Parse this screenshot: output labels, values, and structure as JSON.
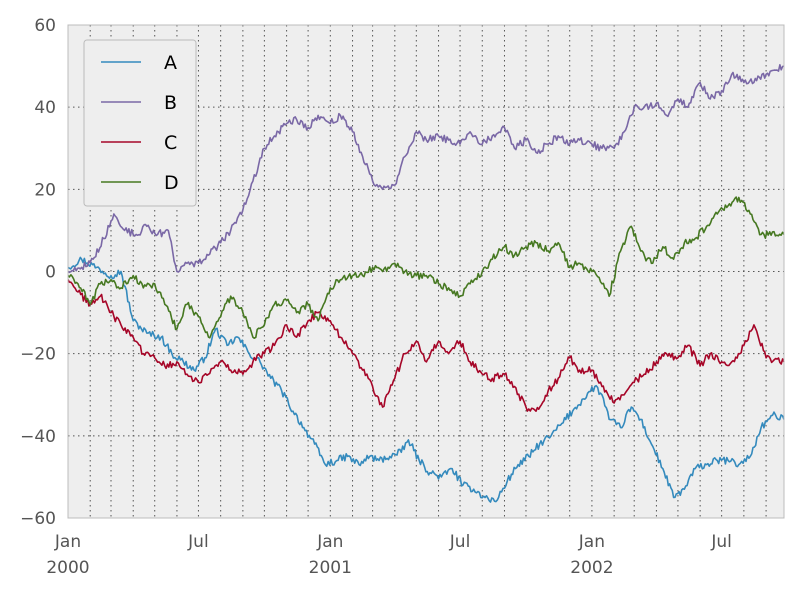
{
  "chart_data": {
    "type": "line",
    "title": "",
    "xlabel": "",
    "ylabel": "",
    "xlim": [
      "2000-01-01",
      "2002-09-26"
    ],
    "ylim": [
      -60,
      60
    ],
    "grid": true,
    "legend_position": "top-left",
    "y_ticks": [
      {
        "value": -60,
        "label": "−60"
      },
      {
        "value": -40,
        "label": "−40"
      },
      {
        "value": -20,
        "label": "−20"
      },
      {
        "value": 0,
        "label": "0"
      },
      {
        "value": 20,
        "label": "20"
      },
      {
        "value": 40,
        "label": "40"
      },
      {
        "value": 60,
        "label": "60"
      }
    ],
    "x_ticks": [
      {
        "date": "2000-01-01",
        "label": "Jan",
        "year": "2000"
      },
      {
        "date": "2000-07-01",
        "label": "Jul",
        "year": ""
      },
      {
        "date": "2001-01-01",
        "label": "Jan",
        "year": "2001"
      },
      {
        "date": "2001-07-01",
        "label": "Jul",
        "year": ""
      },
      {
        "date": "2002-01-01",
        "label": "Jan",
        "year": "2002"
      },
      {
        "date": "2002-07-01",
        "label": "Jul",
        "year": ""
      }
    ],
    "series": [
      {
        "name": "A",
        "color": "#348abd",
        "points": [
          [
            "2000-01-01",
            1
          ],
          [
            "2000-01-20",
            3
          ],
          [
            "2000-02-10",
            1
          ],
          [
            "2000-03-01",
            -1
          ],
          [
            "2000-03-15",
            0
          ],
          [
            "2000-04-01",
            -12
          ],
          [
            "2000-04-20",
            -15
          ],
          [
            "2000-05-10",
            -16
          ],
          [
            "2000-05-25",
            -20
          ],
          [
            "2000-06-10",
            -22
          ],
          [
            "2000-06-25",
            -24
          ],
          [
            "2000-07-10",
            -21
          ],
          [
            "2000-07-25",
            -14
          ],
          [
            "2000-08-10",
            -18
          ],
          [
            "2000-08-25",
            -16
          ],
          [
            "2000-09-10",
            -20
          ],
          [
            "2000-09-25",
            -22
          ],
          [
            "2000-10-10",
            -26
          ],
          [
            "2000-10-25",
            -29
          ],
          [
            "2000-11-10",
            -34
          ],
          [
            "2000-11-25",
            -38
          ],
          [
            "2000-12-10",
            -42
          ],
          [
            "2000-12-25",
            -47
          ],
          [
            "2001-01-10",
            -46
          ],
          [
            "2001-01-25",
            -45
          ],
          [
            "2001-02-10",
            -47
          ],
          [
            "2001-02-25",
            -45
          ],
          [
            "2001-03-10",
            -46
          ],
          [
            "2001-03-25",
            -45
          ],
          [
            "2001-04-10",
            -44
          ],
          [
            "2001-04-20",
            -41
          ],
          [
            "2001-05-05",
            -46
          ],
          [
            "2001-05-20",
            -49
          ],
          [
            "2001-06-05",
            -50
          ],
          [
            "2001-06-20",
            -48
          ],
          [
            "2001-07-05",
            -52
          ],
          [
            "2001-07-20",
            -53
          ],
          [
            "2001-08-05",
            -55
          ],
          [
            "2001-08-20",
            -56
          ],
          [
            "2001-09-05",
            -51
          ],
          [
            "2001-09-20",
            -47
          ],
          [
            "2001-10-05",
            -45
          ],
          [
            "2001-10-20",
            -42
          ],
          [
            "2001-11-05",
            -40
          ],
          [
            "2001-11-20",
            -37
          ],
          [
            "2001-12-05",
            -34
          ],
          [
            "2001-12-20",
            -31
          ],
          [
            "2002-01-05",
            -28
          ],
          [
            "2002-01-15",
            -30
          ],
          [
            "2002-01-25",
            -36
          ],
          [
            "2002-02-10",
            -38
          ],
          [
            "2002-02-25",
            -33
          ],
          [
            "2002-03-10",
            -36
          ],
          [
            "2002-03-25",
            -42
          ],
          [
            "2002-04-10",
            -48
          ],
          [
            "2002-04-25",
            -55
          ],
          [
            "2002-05-10",
            -53
          ],
          [
            "2002-05-25",
            -48
          ],
          [
            "2002-06-10",
            -47
          ],
          [
            "2002-06-25",
            -46
          ],
          [
            "2002-07-10",
            -46
          ],
          [
            "2002-07-25",
            -47
          ],
          [
            "2002-08-10",
            -45
          ],
          [
            "2002-08-25",
            -38
          ],
          [
            "2002-09-10",
            -35
          ],
          [
            "2002-09-26",
            -36
          ]
        ]
      },
      {
        "name": "B",
        "color": "#7a68a6",
        "points": [
          [
            "2000-01-01",
            0
          ],
          [
            "2000-01-20",
            1
          ],
          [
            "2000-02-05",
            3
          ],
          [
            "2000-02-20",
            8
          ],
          [
            "2000-03-05",
            14
          ],
          [
            "2000-03-20",
            10
          ],
          [
            "2000-04-05",
            9
          ],
          [
            "2000-04-20",
            11
          ],
          [
            "2000-05-05",
            9
          ],
          [
            "2000-05-20",
            10
          ],
          [
            "2000-06-01",
            0
          ],
          [
            "2000-06-15",
            2
          ],
          [
            "2000-07-01",
            2
          ],
          [
            "2000-07-15",
            4
          ],
          [
            "2000-08-01",
            7
          ],
          [
            "2000-08-15",
            10
          ],
          [
            "2000-09-01",
            15
          ],
          [
            "2000-09-15",
            22
          ],
          [
            "2000-10-01",
            30
          ],
          [
            "2000-10-15",
            33
          ],
          [
            "2000-11-01",
            36
          ],
          [
            "2000-11-15",
            37
          ],
          [
            "2000-12-01",
            35
          ],
          [
            "2000-12-15",
            38
          ],
          [
            "2001-01-01",
            36
          ],
          [
            "2001-01-15",
            38
          ],
          [
            "2001-02-01",
            34
          ],
          [
            "2001-02-15",
            28
          ],
          [
            "2001-03-01",
            22
          ],
          [
            "2001-03-15",
            20
          ],
          [
            "2001-04-01",
            21
          ],
          [
            "2001-04-15",
            28
          ],
          [
            "2001-05-01",
            34
          ],
          [
            "2001-05-15",
            32
          ],
          [
            "2001-06-01",
            33
          ],
          [
            "2001-06-15",
            32
          ],
          [
            "2001-07-01",
            31
          ],
          [
            "2001-07-15",
            34
          ],
          [
            "2001-08-01",
            31
          ],
          [
            "2001-08-15",
            33
          ],
          [
            "2001-09-01",
            35
          ],
          [
            "2001-09-15",
            30
          ],
          [
            "2001-10-01",
            32
          ],
          [
            "2001-10-15",
            29
          ],
          [
            "2001-11-01",
            31
          ],
          [
            "2001-11-15",
            33
          ],
          [
            "2001-12-01",
            31
          ],
          [
            "2001-12-15",
            32
          ],
          [
            "2002-01-01",
            31
          ],
          [
            "2002-01-15",
            30
          ],
          [
            "2002-02-01",
            30
          ],
          [
            "2002-02-15",
            34
          ],
          [
            "2002-03-01",
            40
          ],
          [
            "2002-03-15",
            40
          ],
          [
            "2002-04-01",
            41
          ],
          [
            "2002-04-15",
            38
          ],
          [
            "2002-05-01",
            42
          ],
          [
            "2002-05-15",
            40
          ],
          [
            "2002-06-01",
            46
          ],
          [
            "2002-06-15",
            42
          ],
          [
            "2002-07-01",
            44
          ],
          [
            "2002-07-15",
            48
          ],
          [
            "2002-08-01",
            46
          ],
          [
            "2002-08-15",
            46
          ],
          [
            "2002-09-01",
            48
          ],
          [
            "2002-09-26",
            50
          ]
        ]
      },
      {
        "name": "C",
        "color": "#a60628",
        "points": [
          [
            "2000-01-01",
            -2
          ],
          [
            "2000-01-15",
            -5
          ],
          [
            "2000-02-01",
            -8
          ],
          [
            "2000-02-15",
            -6
          ],
          [
            "2000-03-01",
            -10
          ],
          [
            "2000-03-15",
            -13
          ],
          [
            "2000-04-01",
            -16
          ],
          [
            "2000-04-15",
            -20
          ],
          [
            "2000-05-01",
            -21
          ],
          [
            "2000-05-15",
            -23
          ],
          [
            "2000-06-01",
            -22
          ],
          [
            "2000-06-15",
            -25
          ],
          [
            "2000-07-01",
            -27
          ],
          [
            "2000-07-15",
            -25
          ],
          [
            "2000-08-01",
            -22
          ],
          [
            "2000-08-15",
            -24
          ],
          [
            "2000-09-01",
            -25
          ],
          [
            "2000-09-15",
            -22
          ],
          [
            "2000-10-01",
            -20
          ],
          [
            "2000-10-15",
            -18
          ],
          [
            "2000-11-01",
            -13
          ],
          [
            "2000-11-15",
            -16
          ],
          [
            "2000-12-01",
            -12
          ],
          [
            "2000-12-15",
            -10
          ],
          [
            "2001-01-01",
            -12
          ],
          [
            "2001-01-15",
            -16
          ],
          [
            "2001-02-01",
            -20
          ],
          [
            "2001-02-15",
            -24
          ],
          [
            "2001-03-01",
            -28
          ],
          [
            "2001-03-15",
            -33
          ],
          [
            "2001-04-01",
            -26
          ],
          [
            "2001-04-15",
            -20
          ],
          [
            "2001-05-01",
            -17
          ],
          [
            "2001-05-15",
            -22
          ],
          [
            "2001-06-01",
            -17
          ],
          [
            "2001-06-15",
            -20
          ],
          [
            "2001-07-01",
            -17
          ],
          [
            "2001-07-15",
            -22
          ],
          [
            "2001-08-01",
            -25
          ],
          [
            "2001-08-15",
            -26
          ],
          [
            "2001-09-01",
            -25
          ],
          [
            "2001-09-15",
            -28
          ],
          [
            "2001-10-01",
            -33
          ],
          [
            "2001-10-15",
            -34
          ],
          [
            "2001-11-01",
            -29
          ],
          [
            "2001-11-15",
            -26
          ],
          [
            "2001-12-01",
            -21
          ],
          [
            "2001-12-15",
            -24
          ],
          [
            "2002-01-01",
            -24
          ],
          [
            "2002-01-15",
            -28
          ],
          [
            "2002-02-01",
            -32
          ],
          [
            "2002-02-15",
            -30
          ],
          [
            "2002-03-01",
            -27
          ],
          [
            "2002-03-15",
            -25
          ],
          [
            "2002-04-01",
            -22
          ],
          [
            "2002-04-15",
            -20
          ],
          [
            "2002-05-01",
            -21
          ],
          [
            "2002-05-15",
            -18
          ],
          [
            "2002-06-01",
            -23
          ],
          [
            "2002-06-15",
            -20
          ],
          [
            "2002-07-01",
            -22
          ],
          [
            "2002-07-15",
            -22
          ],
          [
            "2002-08-01",
            -18
          ],
          [
            "2002-08-15",
            -13
          ],
          [
            "2002-09-01",
            -21
          ],
          [
            "2002-09-26",
            -22
          ]
        ]
      },
      {
        "name": "D",
        "color": "#467821",
        "points": [
          [
            "2000-01-01",
            -1
          ],
          [
            "2000-01-15",
            -3
          ],
          [
            "2000-02-01",
            -8
          ],
          [
            "2000-02-15",
            -3
          ],
          [
            "2000-03-01",
            -2
          ],
          [
            "2000-03-15",
            -4
          ],
          [
            "2000-04-01",
            -1
          ],
          [
            "2000-04-15",
            -4
          ],
          [
            "2000-05-01",
            -3
          ],
          [
            "2000-05-15",
            -8
          ],
          [
            "2000-06-01",
            -14
          ],
          [
            "2000-06-15",
            -8
          ],
          [
            "2000-07-01",
            -11
          ],
          [
            "2000-07-15",
            -16
          ],
          [
            "2000-08-01",
            -11
          ],
          [
            "2000-08-15",
            -6
          ],
          [
            "2000-09-01",
            -10
          ],
          [
            "2000-09-15",
            -16
          ],
          [
            "2000-10-01",
            -13
          ],
          [
            "2000-10-15",
            -8
          ],
          [
            "2000-11-01",
            -7
          ],
          [
            "2000-11-15",
            -10
          ],
          [
            "2000-12-01",
            -8
          ],
          [
            "2000-12-15",
            -12
          ],
          [
            "2001-01-01",
            -4
          ],
          [
            "2001-01-15",
            -2
          ],
          [
            "2001-02-01",
            -1
          ],
          [
            "2001-02-15",
            -1
          ],
          [
            "2001-03-01",
            1
          ],
          [
            "2001-03-15",
            0
          ],
          [
            "2001-04-01",
            2
          ],
          [
            "2001-04-15",
            0
          ],
          [
            "2001-05-01",
            -1
          ],
          [
            "2001-05-15",
            -1
          ],
          [
            "2001-06-01",
            -3
          ],
          [
            "2001-06-15",
            -4
          ],
          [
            "2001-07-01",
            -6
          ],
          [
            "2001-07-15",
            -3
          ],
          [
            "2001-08-01",
            0
          ],
          [
            "2001-08-15",
            3
          ],
          [
            "2001-09-01",
            6
          ],
          [
            "2001-09-15",
            4
          ],
          [
            "2001-10-01",
            6
          ],
          [
            "2001-10-15",
            7
          ],
          [
            "2001-11-01",
            5
          ],
          [
            "2001-11-15",
            7
          ],
          [
            "2001-12-01",
            1
          ],
          [
            "2001-12-15",
            2
          ],
          [
            "2002-01-01",
            0
          ],
          [
            "2002-01-15",
            -3
          ],
          [
            "2002-01-25",
            -6
          ],
          [
            "2002-02-10",
            5
          ],
          [
            "2002-02-25",
            11
          ],
          [
            "2002-03-10",
            5
          ],
          [
            "2002-03-25",
            2
          ],
          [
            "2002-04-10",
            6
          ],
          [
            "2002-04-25",
            3
          ],
          [
            "2002-05-10",
            7
          ],
          [
            "2002-05-25",
            8
          ],
          [
            "2002-06-10",
            11
          ],
          [
            "2002-06-25",
            14
          ],
          [
            "2002-07-10",
            16
          ],
          [
            "2002-07-25",
            18
          ],
          [
            "2002-08-10",
            14
          ],
          [
            "2002-08-25",
            9
          ],
          [
            "2002-09-26",
            9
          ]
        ]
      }
    ]
  }
}
